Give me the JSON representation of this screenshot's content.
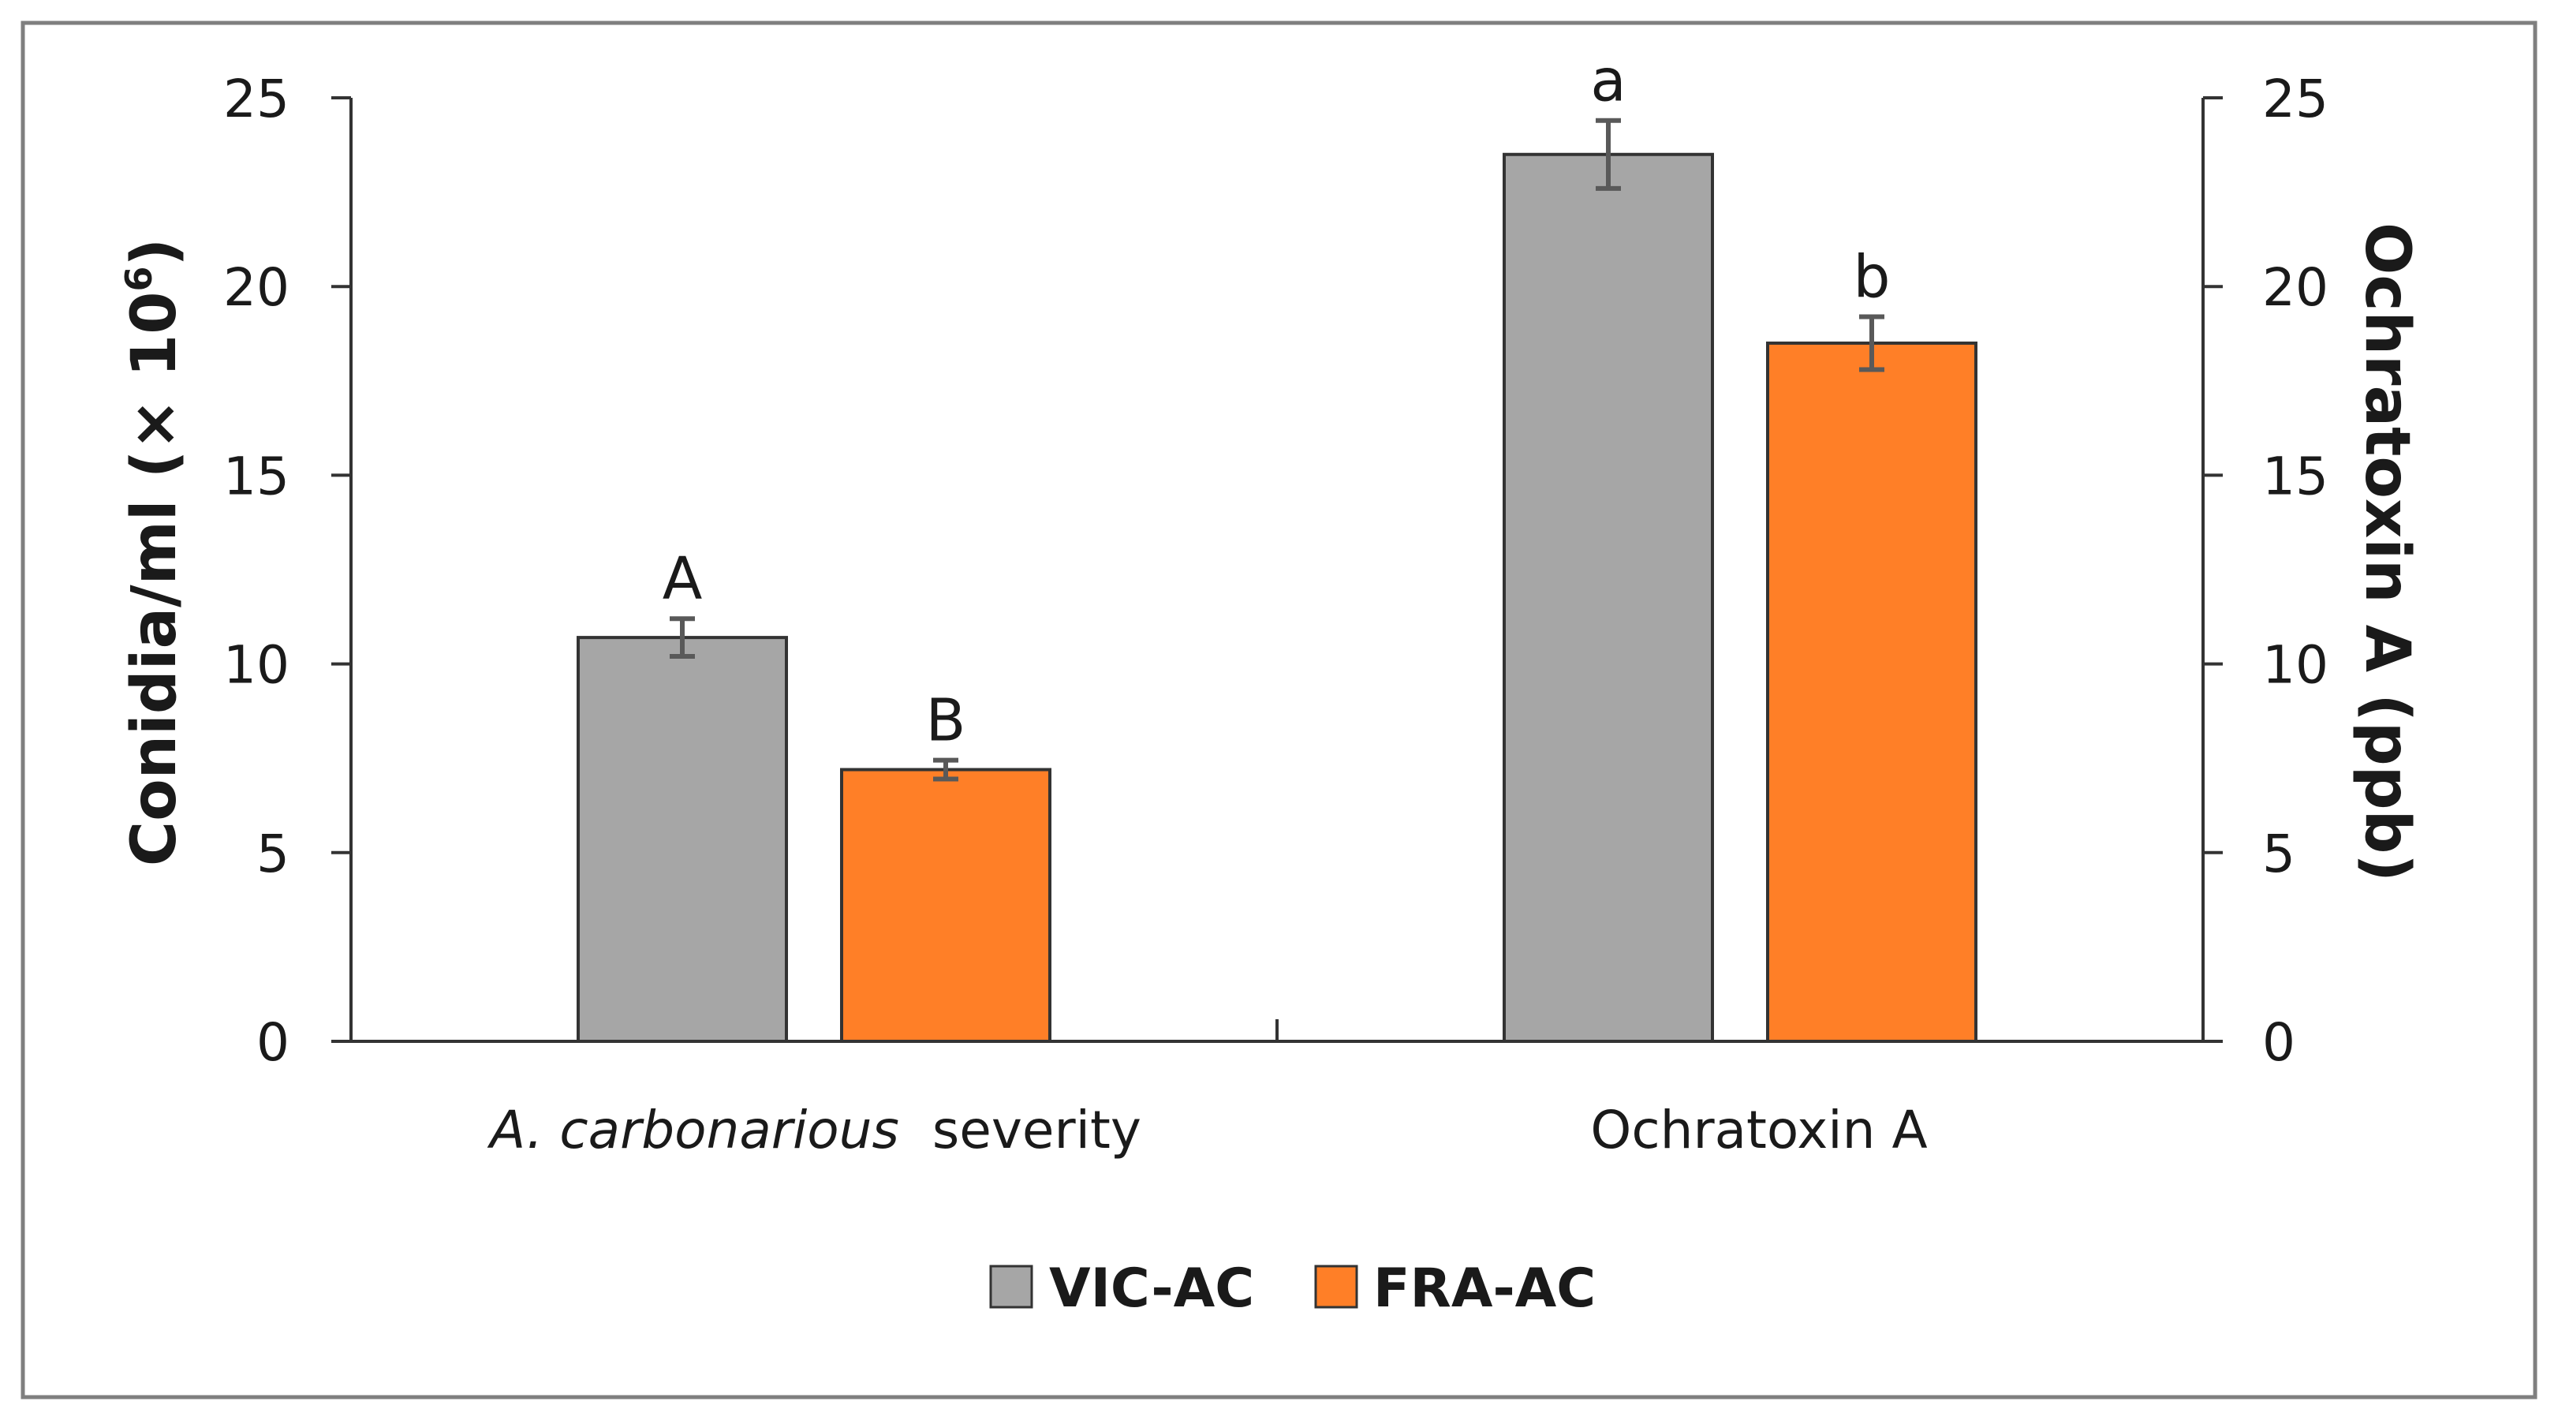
{
  "chart_data": {
    "type": "bar",
    "categories": [
      "A. carbonarious  severity",
      "Ochratoxin A"
    ],
    "category_italic_part": "A. carbonarious",
    "category_plain_part": "  severity",
    "series": [
      {
        "name": "VIC-AC",
        "color": "#A6A6A6",
        "values": [
          10.7,
          23.5
        ],
        "errors": [
          0.5,
          0.9
        ],
        "letters": [
          "A",
          "a"
        ]
      },
      {
        "name": "FRA-AC",
        "color": "#FF7F27",
        "values": [
          7.2,
          18.5
        ],
        "errors": [
          0.25,
          0.7
        ],
        "letters": [
          "B",
          "b"
        ]
      }
    ],
    "y_left": {
      "label_base": "Conidia/ml (× 10",
      "label_sup": "6",
      "label_end": ")",
      "ylim": [
        0,
        25
      ],
      "ticks": [
        "0",
        "5",
        "10",
        "15",
        "20",
        "25"
      ]
    },
    "y_right": {
      "label": "Ochratoxin A (ppb)",
      "ylim": [
        0,
        25
      ],
      "ticks": [
        "0",
        "5",
        "10",
        "15",
        "20",
        "25"
      ]
    },
    "legend": {
      "placement": "bottom-center"
    },
    "grid": false
  }
}
